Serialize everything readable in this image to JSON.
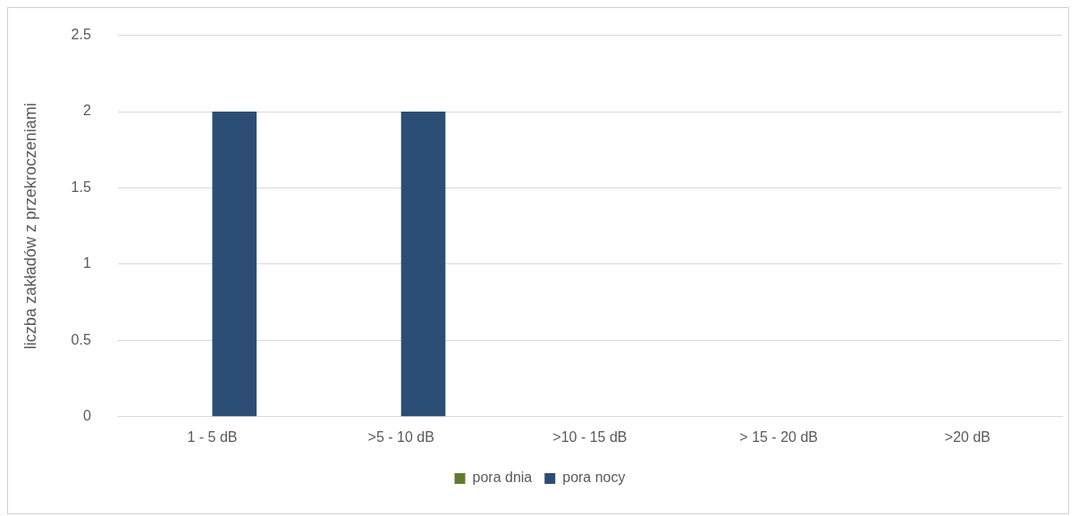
{
  "chart_data": {
    "type": "bar",
    "ylabel": "liczba zakładów z przekroczeniami",
    "categories": [
      "1 - 5 dB",
      ">5 - 10 dB",
      ">10 - 15 dB",
      "> 15 - 20 dB",
      ">20 dB"
    ],
    "series": [
      {
        "name": "pora dnia",
        "color": "#5e7b2e",
        "values": [
          0,
          0,
          0,
          0,
          0
        ]
      },
      {
        "name": "pora nocy",
        "color": "#2c4d75",
        "values": [
          2,
          2,
          0,
          0,
          0
        ]
      }
    ],
    "ylim": [
      0,
      2.5
    ],
    "yticks": [
      0,
      0.5,
      1,
      1.5,
      2,
      2.5
    ],
    "grid": "y",
    "legend": "bottom"
  }
}
